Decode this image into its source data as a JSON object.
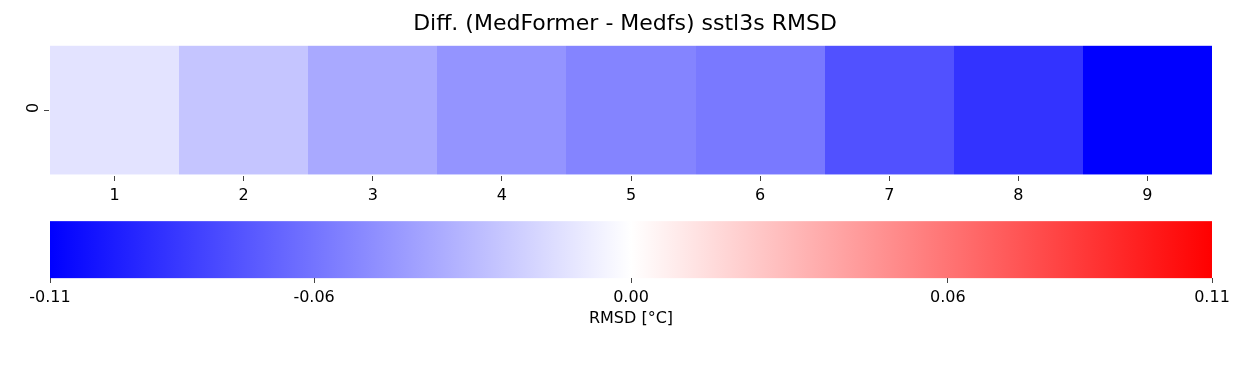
{
  "chart_data": {
    "type": "heatmap",
    "title": "Diff. (MedFormer - Medfs) sstl3s RMSD",
    "categories": [
      "1",
      "2",
      "3",
      "4",
      "5",
      "6",
      "7",
      "8",
      "9"
    ],
    "y_categories": [
      "0"
    ],
    "cells": [
      [
        -0.012,
        -0.025,
        -0.037,
        -0.046,
        -0.053,
        -0.058,
        -0.075,
        -0.088,
        -0.11
      ]
    ],
    "clim": [
      -0.11,
      0.11
    ],
    "cticks": [
      -0.11,
      -0.06,
      {
        "value": 0,
        "label": "0.00"
      },
      0.06,
      0.11
    ],
    "clabel": "RMSD [°C]"
  }
}
